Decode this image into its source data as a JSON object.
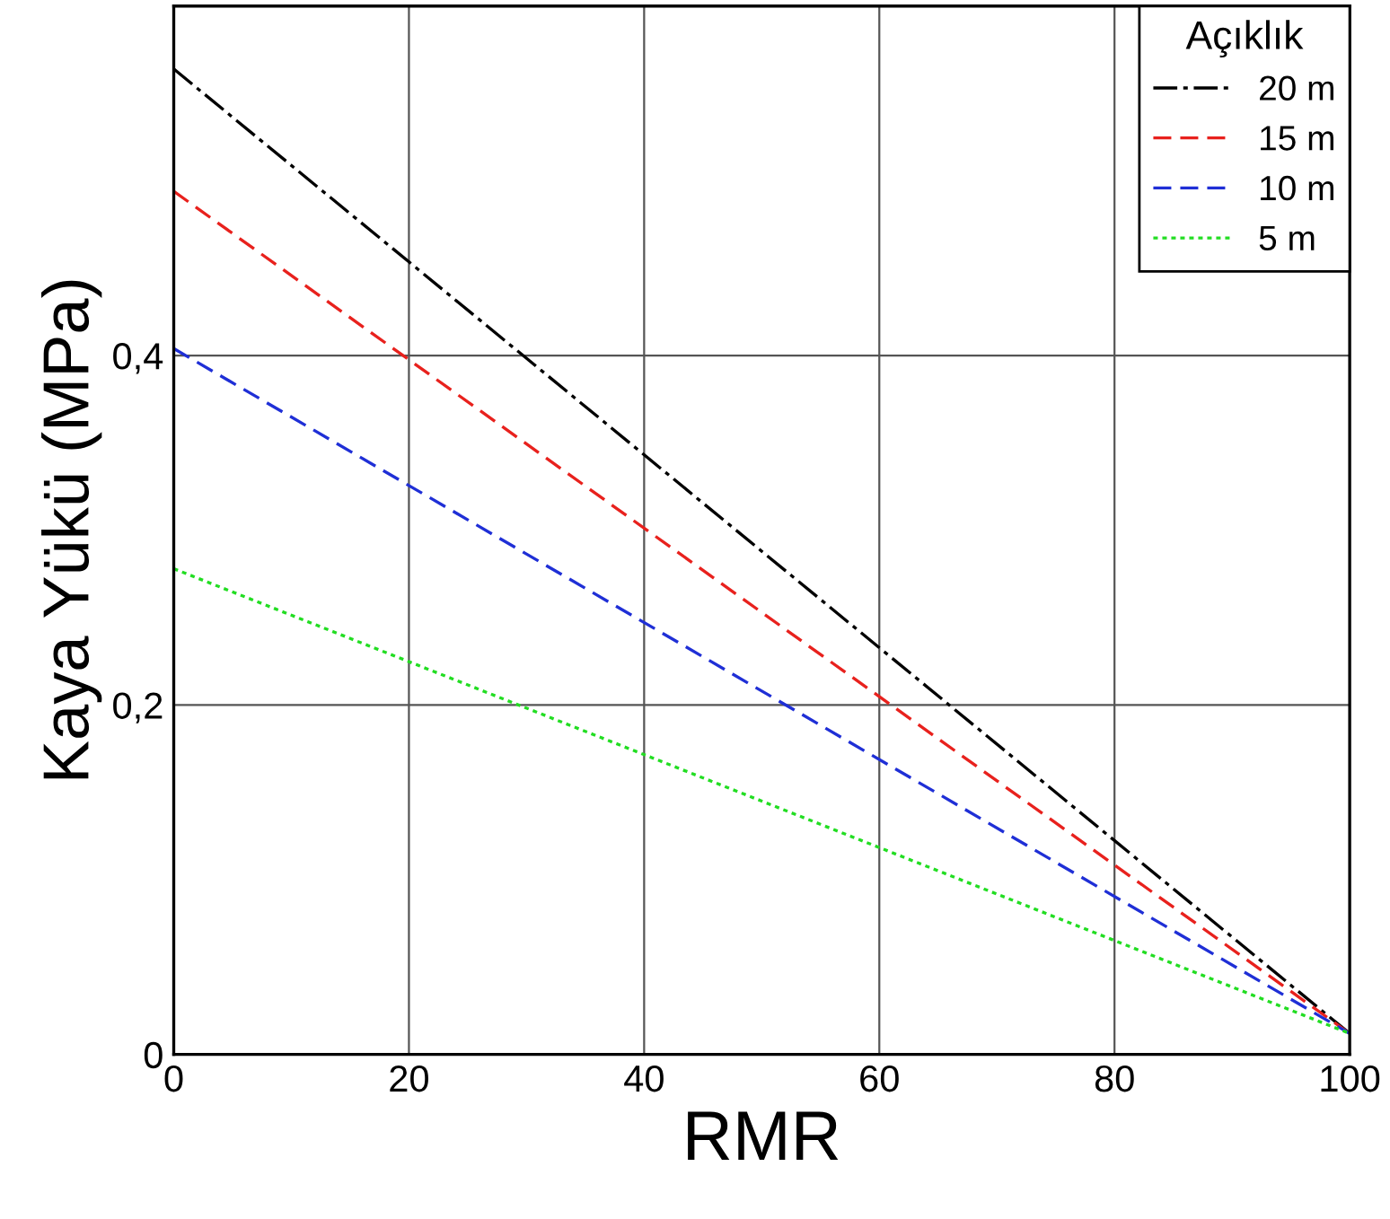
{
  "chart_data": {
    "type": "line",
    "xlabel": "RMR",
    "ylabel": "Kaya Yükü (MPa)",
    "legend_title": "Açıklık",
    "x": [
      0,
      100
    ],
    "series": [
      {
        "name": "20 m",
        "color": "#000000",
        "line_style": "dashdot",
        "values": [
          0.564,
          0.012
        ]
      },
      {
        "name": "15 m",
        "color": "#e8211d",
        "line_style": "dashed",
        "values": [
          0.494,
          0.012
        ]
      },
      {
        "name": "10 m",
        "color": "#1f2fd6",
        "line_style": "dashed",
        "values": [
          0.404,
          0.012
        ]
      },
      {
        "name": "5 m",
        "color": "#22dd22",
        "line_style": "dotted",
        "values": [
          0.278,
          0.012
        ]
      }
    ],
    "xlim": [
      0,
      100
    ],
    "ylim": [
      0,
      0.6
    ],
    "xticks": [
      0,
      20,
      40,
      60,
      80,
      100
    ],
    "yticks": [
      0,
      {
        "value": 0.2,
        "label": "0,2"
      },
      {
        "value": 0.4,
        "label": "0,4"
      }
    ],
    "grid": true,
    "legend": "top right",
    "marker": "none"
  }
}
